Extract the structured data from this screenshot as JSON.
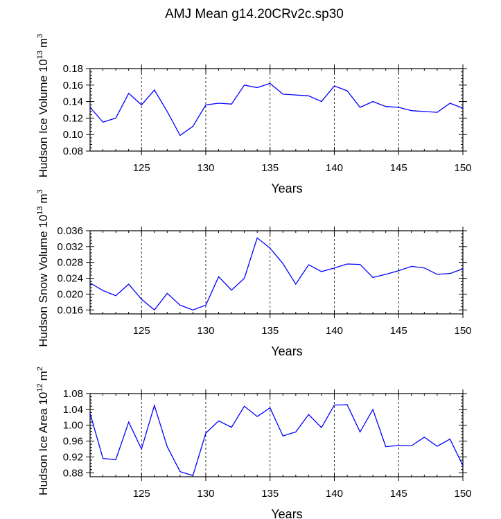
{
  "title": "AMJ Mean g14.20CRv2c.sp30",
  "colors": {
    "series": "#0000ff",
    "axes": "#000000",
    "grid": "#000000"
  },
  "chart_data": [
    {
      "type": "line",
      "ylabel_main": "Hudson Ice Volume 10",
      "ylabel_exp": "13",
      "ylabel_unit": "m",
      "ylabel_unit_exp": "3",
      "xlabel": "Years",
      "xlim": [
        121,
        150
      ],
      "ylim": [
        0.08,
        0.18
      ],
      "x_ticks": [
        125,
        130,
        135,
        140,
        145,
        150
      ],
      "x_tick_labels": [
        "125",
        "130",
        "135",
        "140",
        "145",
        "150"
      ],
      "y_ticks": [
        0.08,
        0.1,
        0.12,
        0.14,
        0.16,
        0.18
      ],
      "y_tick_labels": [
        "0.08",
        "0.10",
        "0.12",
        "0.14",
        "0.16",
        "0.18"
      ],
      "x": [
        121,
        122,
        123,
        124,
        125,
        126,
        127,
        128,
        129,
        130,
        131,
        132,
        133,
        134,
        135,
        136,
        137,
        138,
        139,
        140,
        141,
        142,
        143,
        144,
        145,
        146,
        147,
        148,
        149,
        150
      ],
      "y": [
        0.133,
        0.115,
        0.12,
        0.15,
        0.136,
        0.154,
        0.128,
        0.099,
        0.11,
        0.136,
        0.138,
        0.137,
        0.16,
        0.157,
        0.162,
        0.149,
        0.148,
        0.147,
        0.14,
        0.159,
        0.153,
        0.133,
        0.14,
        0.134,
        0.133,
        0.129,
        0.128,
        0.127,
        0.138,
        0.132
      ]
    },
    {
      "type": "line",
      "ylabel_main": "Hudson Snow Volume 10",
      "ylabel_exp": "13",
      "ylabel_unit": "m",
      "ylabel_unit_exp": "3",
      "xlabel": "Years",
      "xlim": [
        121,
        150
      ],
      "ylim": [
        0.015,
        0.036
      ],
      "x_ticks": [
        125,
        130,
        135,
        140,
        145,
        150
      ],
      "x_tick_labels": [
        "125",
        "130",
        "135",
        "140",
        "145",
        "150"
      ],
      "y_ticks": [
        0.016,
        0.02,
        0.024,
        0.028,
        0.032,
        0.036
      ],
      "y_tick_labels": [
        "0.016",
        "0.020",
        "0.024",
        "0.028",
        "0.032",
        "0.036"
      ],
      "x": [
        121,
        122,
        123,
        124,
        125,
        126,
        127,
        128,
        129,
        130,
        131,
        132,
        133,
        134,
        135,
        136,
        137,
        138,
        139,
        140,
        141,
        142,
        143,
        144,
        145,
        146,
        147,
        148,
        149,
        150
      ],
      "y": [
        0.0228,
        0.0209,
        0.0196,
        0.0225,
        0.0187,
        0.016,
        0.0202,
        0.0172,
        0.016,
        0.0172,
        0.0244,
        0.021,
        0.024,
        0.0342,
        0.0316,
        0.0277,
        0.0225,
        0.0274,
        0.0257,
        0.0266,
        0.0276,
        0.0275,
        0.0242,
        0.025,
        0.0259,
        0.027,
        0.0266,
        0.025,
        0.0252,
        0.0264
      ]
    },
    {
      "type": "line",
      "ylabel_main": "Hudson Ice Area 10",
      "ylabel_exp": "12",
      "ylabel_unit": "m",
      "ylabel_unit_exp": "2",
      "xlabel": "Years",
      "xlim": [
        121,
        150
      ],
      "ylim": [
        0.87,
        1.08
      ],
      "x_ticks": [
        125,
        130,
        135,
        140,
        145,
        150
      ],
      "x_tick_labels": [
        "125",
        "130",
        "135",
        "140",
        "145",
        "150"
      ],
      "y_ticks": [
        0.88,
        0.92,
        0.96,
        1.0,
        1.04,
        1.08
      ],
      "y_tick_labels": [
        "0.88",
        "0.92",
        "0.96",
        "1.00",
        "1.04",
        "1.08"
      ],
      "x": [
        121,
        122,
        123,
        124,
        125,
        126,
        127,
        128,
        129,
        130,
        131,
        132,
        133,
        134,
        135,
        136,
        137,
        138,
        139,
        140,
        141,
        142,
        143,
        144,
        145,
        146,
        147,
        148,
        149,
        150
      ],
      "y": [
        1.03,
        0.916,
        0.913,
        1.008,
        0.94,
        1.05,
        0.946,
        0.883,
        0.873,
        0.98,
        1.011,
        0.995,
        1.048,
        1.022,
        1.044,
        0.973,
        0.983,
        1.027,
        0.994,
        1.051,
        1.052,
        0.983,
        1.04,
        0.946,
        0.949,
        0.948,
        0.97,
        0.947,
        0.965,
        0.898
      ]
    }
  ]
}
